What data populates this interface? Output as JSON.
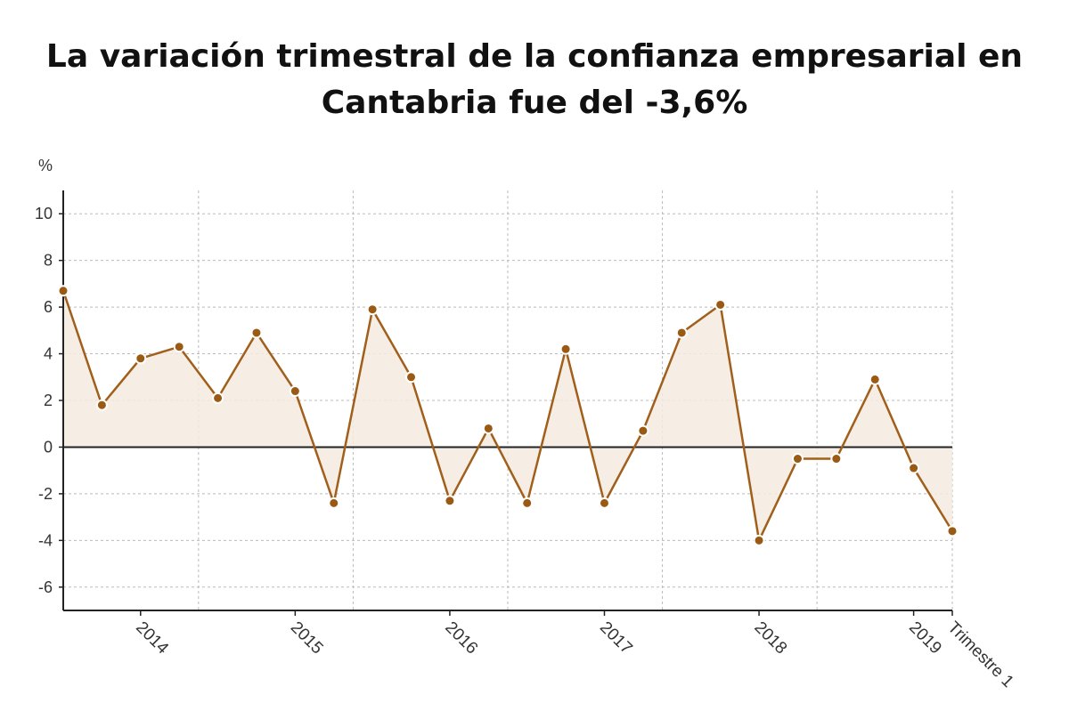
{
  "chart_data": {
    "type": "area",
    "title_line1": "La variación trimestral de la confianza empresarial en",
    "title_line2": "Cantabria fue del -3,6%",
    "ylabel": "%",
    "ylim": [
      -7,
      11
    ],
    "yticks": [
      10,
      8,
      6,
      4,
      2,
      0,
      -2,
      -4,
      -6
    ],
    "ytick_labels": [
      "10",
      "8",
      "6",
      "4",
      "2",
      "0",
      "-2",
      "-4",
      "-6"
    ],
    "xticks": [
      {
        "x": 2,
        "label": "2014"
      },
      {
        "x": 6,
        "label": "2015"
      },
      {
        "x": 10,
        "label": "2016"
      },
      {
        "x": 14,
        "label": "2017"
      },
      {
        "x": 18,
        "label": "2018"
      },
      {
        "x": 22,
        "label": "2019"
      },
      {
        "x": 23,
        "label": "Trimestre 1"
      }
    ],
    "x": [
      0,
      1,
      2,
      3,
      4,
      5,
      6,
      7,
      8,
      9,
      10,
      11,
      12,
      13,
      14,
      15,
      16,
      17,
      18,
      19,
      20,
      21,
      22,
      23
    ],
    "values": [
      6.7,
      1.8,
      3.8,
      4.3,
      2.1,
      4.9,
      2.4,
      -2.4,
      5.9,
      3.0,
      -2.3,
      0.8,
      -2.4,
      4.2,
      -2.4,
      0.7,
      4.9,
      6.1,
      -4.0,
      -0.5,
      -0.5,
      2.9,
      -0.9,
      -3.6
    ],
    "grid": true,
    "colors": {
      "line": "#a05f1b",
      "marker": "#9a5a14",
      "fill": "#f5ebe0",
      "zero_line": "#222222",
      "grid": "#bbbbbb"
    }
  }
}
